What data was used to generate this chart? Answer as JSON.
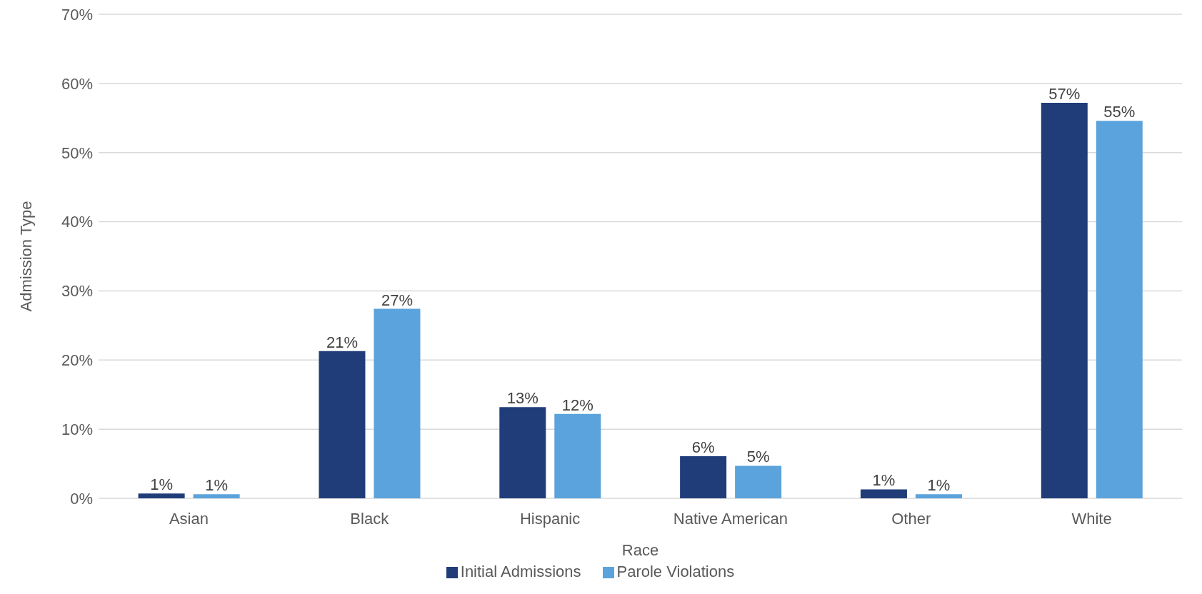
{
  "chart_data": {
    "type": "bar",
    "xlabel": "Race",
    "ylabel": "Admission Type",
    "categories": [
      "Asian",
      "Black",
      "Hispanic",
      "Native American",
      "Other",
      "White"
    ],
    "series": [
      {
        "name": "Initial Admissions",
        "color": "#203d7a",
        "values": [
          0.7,
          21.3,
          13.2,
          6.1,
          1.3,
          57.2
        ],
        "value_labels": [
          "1%",
          "21%",
          "13%",
          "6%",
          "1%",
          "57%"
        ]
      },
      {
        "name": "Parole Violations",
        "color": "#5ba3dc",
        "values": [
          0.6,
          27.4,
          12.2,
          4.7,
          0.6,
          54.6
        ],
        "value_labels": [
          "1%",
          "27%",
          "12%",
          "5%",
          "1%",
          "55%"
        ]
      }
    ],
    "ylim": [
      0,
      70
    ],
    "yticks": [
      {
        "value": 0,
        "label": "0%"
      },
      {
        "value": 10,
        "label": "10%"
      },
      {
        "value": 20,
        "label": "20%"
      },
      {
        "value": 30,
        "label": "30%"
      },
      {
        "value": 40,
        "label": "40%"
      },
      {
        "value": 50,
        "label": "50%"
      },
      {
        "value": 60,
        "label": "60%"
      },
      {
        "value": 70,
        "label": "70%"
      }
    ],
    "grid": "y",
    "legend": "bottom"
  }
}
